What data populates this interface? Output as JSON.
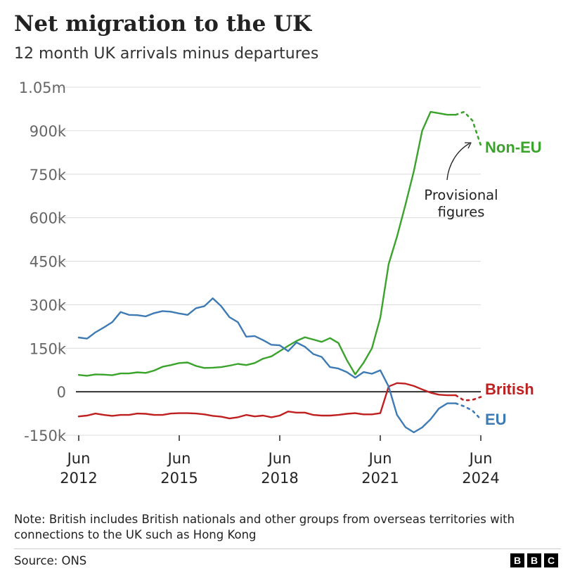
{
  "header": {
    "title": "Net migration to the UK",
    "subtitle": "12 month UK arrivals minus departures"
  },
  "footer": {
    "note": "Note: British includes British nationals and other groups from overseas territories with connections to the UK such as Hong Kong",
    "source": "Source: ONS",
    "logo_letters": [
      "B",
      "B",
      "C"
    ]
  },
  "chart_data": {
    "type": "line",
    "title": "Net migration to the UK",
    "subtitle": "12 month UK arrivals minus departures",
    "xlabel": "",
    "ylabel": "",
    "ylim": [
      -150000,
      1050000
    ],
    "xlim": [
      2012.5,
      2024.5
    ],
    "yticks": [
      -150000,
      0,
      150000,
      300000,
      450000,
      600000,
      750000,
      900000,
      1050000
    ],
    "ytick_labels": [
      "-150k",
      "0",
      "150k",
      "300k",
      "450k",
      "600k",
      "750k",
      "900k",
      "1.05m"
    ],
    "xticks": [
      2012.5,
      2015.5,
      2018.5,
      2021.5,
      2024.5
    ],
    "xtick_labels": [
      {
        "top": "Jun",
        "bottom": "2012"
      },
      {
        "top": "Jun",
        "bottom": "2015"
      },
      {
        "top": "Jun",
        "bottom": "2018"
      },
      {
        "top": "Jun",
        "bottom": "2021"
      },
      {
        "top": "Jun",
        "bottom": "2024"
      }
    ],
    "grid": true,
    "annotation": {
      "text_lines": [
        "Provisional",
        "figures"
      ]
    },
    "series": [
      {
        "name": "Non-EU",
        "label": "Non-EU",
        "color": "#3aa32b",
        "x": [
          2012.5,
          2012.75,
          2013.0,
          2013.25,
          2013.5,
          2013.75,
          2014.0,
          2014.25,
          2014.5,
          2014.75,
          2015.0,
          2015.25,
          2015.5,
          2015.75,
          2016.0,
          2016.25,
          2016.5,
          2016.75,
          2017.0,
          2017.25,
          2017.5,
          2017.75,
          2018.0,
          2018.25,
          2018.5,
          2018.75,
          2019.0,
          2019.25,
          2019.5,
          2019.75,
          2020.0,
          2020.25,
          2020.5,
          2020.75,
          2021.0,
          2021.25,
          2021.5,
          2021.75,
          2022.0,
          2022.25,
          2022.5,
          2022.75,
          2023.0,
          2023.25,
          2023.5,
          2023.75
        ],
        "values": [
          58000,
          55000,
          60000,
          59000,
          57000,
          63000,
          63000,
          67000,
          65000,
          73000,
          86000,
          92000,
          99000,
          101000,
          89000,
          82000,
          83000,
          85000,
          90000,
          96000,
          92000,
          99000,
          114000,
          122000,
          140000,
          158000,
          175000,
          188000,
          180000,
          172000,
          185000,
          168000,
          110000,
          60000,
          100000,
          150000,
          255000,
          440000,
          535000,
          645000,
          760000,
          900000,
          965000,
          960000,
          955000,
          955000
        ],
        "provisional_x": [
          2023.75,
          2024.0,
          2024.25,
          2024.5
        ],
        "provisional_values": [
          955000,
          965000,
          935000,
          850000
        ]
      },
      {
        "name": "British",
        "label": "British",
        "color": "#bf1f1f",
        "x": [
          2012.5,
          2012.75,
          2013.0,
          2013.25,
          2013.5,
          2013.75,
          2014.0,
          2014.25,
          2014.5,
          2014.75,
          2015.0,
          2015.25,
          2015.5,
          2015.75,
          2016.0,
          2016.25,
          2016.5,
          2016.75,
          2017.0,
          2017.25,
          2017.5,
          2017.75,
          2018.0,
          2018.25,
          2018.5,
          2018.75,
          2019.0,
          2019.25,
          2019.5,
          2019.75,
          2020.0,
          2020.25,
          2020.5,
          2020.75,
          2021.0,
          2021.25,
          2021.5,
          2021.75,
          2022.0,
          2022.25,
          2022.5,
          2022.75,
          2023.0,
          2023.25,
          2023.5,
          2023.75
        ],
        "values": [
          -85000,
          -82000,
          -75000,
          -80000,
          -83000,
          -80000,
          -80000,
          -75000,
          -76000,
          -80000,
          -80000,
          -75000,
          -74000,
          -74000,
          -75000,
          -78000,
          -83000,
          -86000,
          -92000,
          -88000,
          -80000,
          -85000,
          -82000,
          -88000,
          -82000,
          -68000,
          -72000,
          -72000,
          -80000,
          -82000,
          -82000,
          -80000,
          -76000,
          -74000,
          -78000,
          -78000,
          -74000,
          18000,
          30000,
          28000,
          20000,
          8000,
          -3000,
          -10000,
          -12000,
          -12000
        ],
        "provisional_x": [
          2023.75,
          2024.0,
          2024.25,
          2024.5
        ],
        "provisional_values": [
          -12000,
          -30000,
          -28000,
          -18000
        ]
      },
      {
        "name": "EU",
        "label": "EU",
        "color": "#3e7ab3",
        "x": [
          2012.5,
          2012.75,
          2013.0,
          2013.25,
          2013.5,
          2013.75,
          2014.0,
          2014.25,
          2014.5,
          2014.75,
          2015.0,
          2015.25,
          2015.5,
          2015.75,
          2016.0,
          2016.25,
          2016.5,
          2016.75,
          2017.0,
          2017.25,
          2017.5,
          2017.75,
          2018.0,
          2018.25,
          2018.5,
          2018.75,
          2019.0,
          2019.25,
          2019.5,
          2019.75,
          2020.0,
          2020.25,
          2020.5,
          2020.75,
          2021.0,
          2021.25,
          2021.5,
          2021.75,
          2022.0,
          2022.25,
          2022.5,
          2022.75,
          2023.0,
          2023.25,
          2023.5,
          2023.75
        ],
        "values": [
          187000,
          183000,
          205000,
          222000,
          240000,
          275000,
          265000,
          264000,
          260000,
          271000,
          278000,
          276000,
          270000,
          265000,
          288000,
          295000,
          322000,
          295000,
          257000,
          240000,
          190000,
          192000,
          178000,
          162000,
          160000,
          140000,
          170000,
          155000,
          130000,
          120000,
          85000,
          80000,
          68000,
          48000,
          68000,
          62000,
          74000,
          18000,
          -80000,
          -122000,
          -140000,
          -123000,
          -95000,
          -58000,
          -40000,
          -40000
        ],
        "provisional_x": [
          2023.75,
          2024.0,
          2024.25,
          2024.5
        ],
        "provisional_values": [
          -40000,
          -50000,
          -65000,
          -95000
        ]
      }
    ]
  }
}
